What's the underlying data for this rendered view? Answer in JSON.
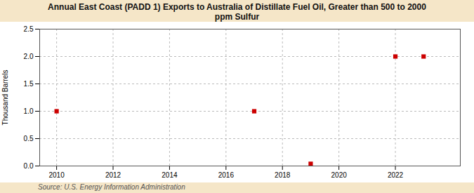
{
  "chart_data": {
    "type": "scatter",
    "title": "Annual East Coast (PADD 1) Exports to Australia of Distillate Fuel Oil, Greater than 500 to 2000\nppm Sulfur",
    "ylabel": "Thousand Barrels",
    "source": "Source: U.S. Energy Information Administration",
    "x": [
      2010,
      2017,
      2019,
      2022,
      2023
    ],
    "values": [
      1.0,
      1.0,
      0.04,
      2.0,
      2.0
    ],
    "color": "#cc0000",
    "marker": "square",
    "xlim": [
      2009.4,
      2024.3
    ],
    "ylim": [
      0.0,
      2.5
    ],
    "xticks": [
      2010,
      2012,
      2014,
      2016,
      2018,
      2020,
      2022
    ],
    "yticks": [
      {
        "value": 0.0,
        "label": "0.0"
      },
      0.5,
      {
        "value": 1.0,
        "label": "1.0"
      },
      1.5,
      {
        "value": 2.0,
        "label": "2.0"
      },
      2.5
    ],
    "grid": true
  }
}
